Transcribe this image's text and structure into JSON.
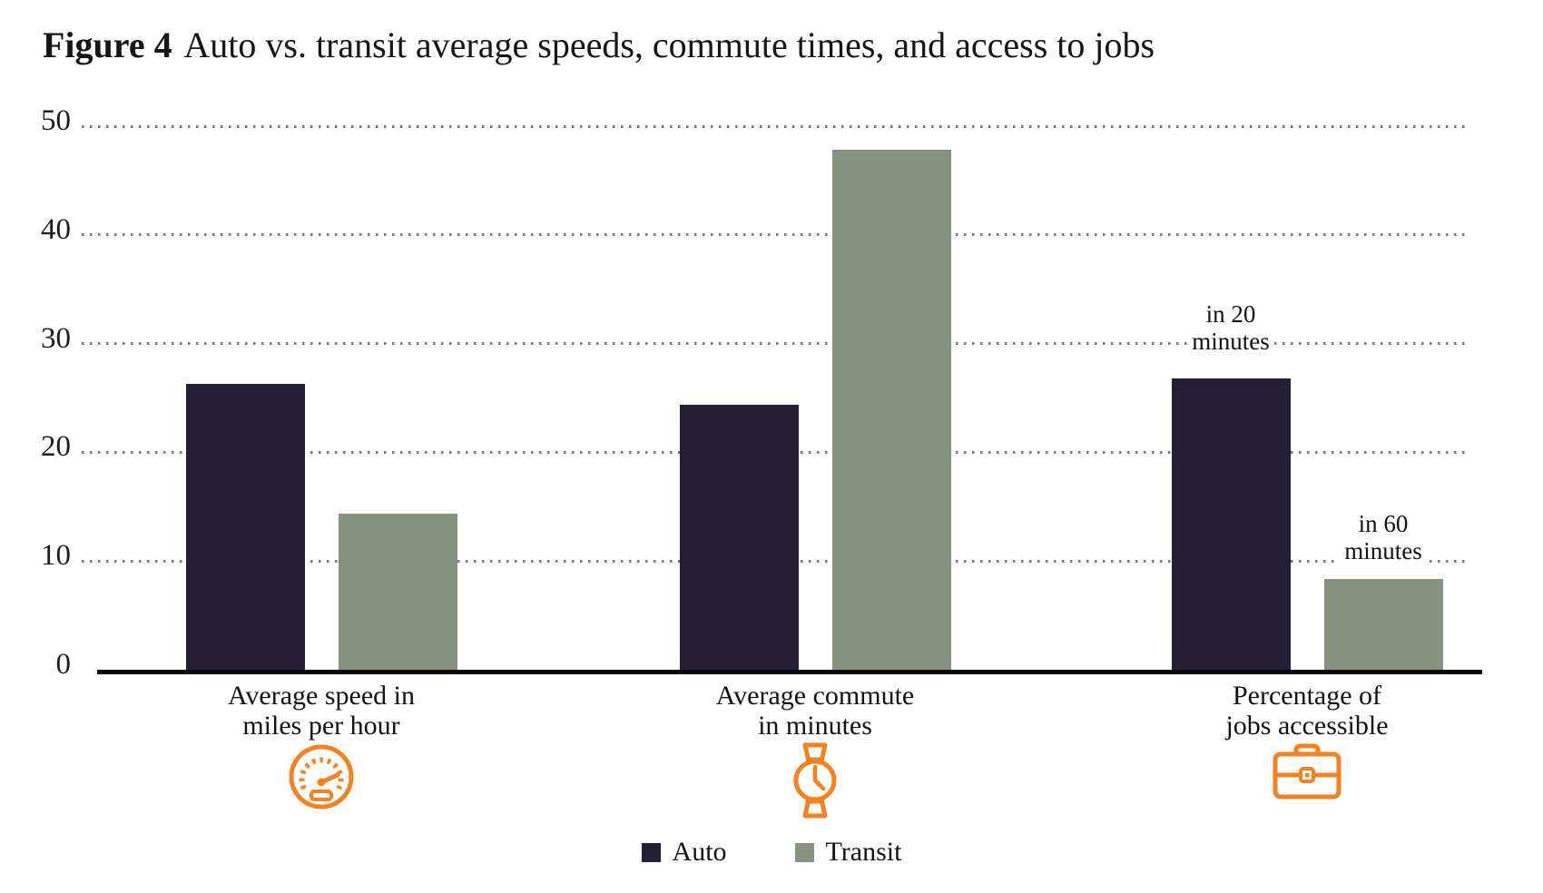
{
  "title": {
    "label": "Figure 4",
    "text": "Auto vs. transit average speeds, commute times, and access to jobs"
  },
  "colors": {
    "auto": "#241f37",
    "transit": "#87927f",
    "icon_orange": "#f6821f",
    "gridline": "#7a7a7a",
    "axis": "#0a0a0a"
  },
  "chart_data": {
    "type": "bar",
    "title": "Figure 4 Auto vs. transit average speeds, commute times, and access to jobs",
    "xlabel": "",
    "ylabel": "",
    "ylim": [
      0,
      50
    ],
    "grid": "horizontal-dotted",
    "legend_position": "bottom-center",
    "categories": [
      {
        "label_lines": [
          "Average speed in",
          "miles per hour"
        ],
        "icon": "speedometer-icon"
      },
      {
        "label_lines": [
          "Average commute",
          "in minutes"
        ],
        "icon": "watch-icon"
      },
      {
        "label_lines": [
          "Percentage of",
          "jobs accessible"
        ],
        "icon": "briefcase-icon"
      }
    ],
    "series": [
      {
        "name": "Auto",
        "color": "#241f37",
        "values": [
          26.5,
          24.5,
          27
        ]
      },
      {
        "name": "Transit",
        "color": "#87927f",
        "values": [
          14.5,
          48,
          8.5
        ]
      }
    ],
    "y_axis": {
      "ticks": [
        0,
        10,
        20,
        30,
        40,
        50
      ]
    },
    "annotations": [
      {
        "group": 2,
        "series": 0,
        "lines": [
          "in 20",
          "minutes"
        ]
      },
      {
        "group": 2,
        "series": 1,
        "lines": [
          "in 60",
          "minutes"
        ]
      }
    ]
  }
}
